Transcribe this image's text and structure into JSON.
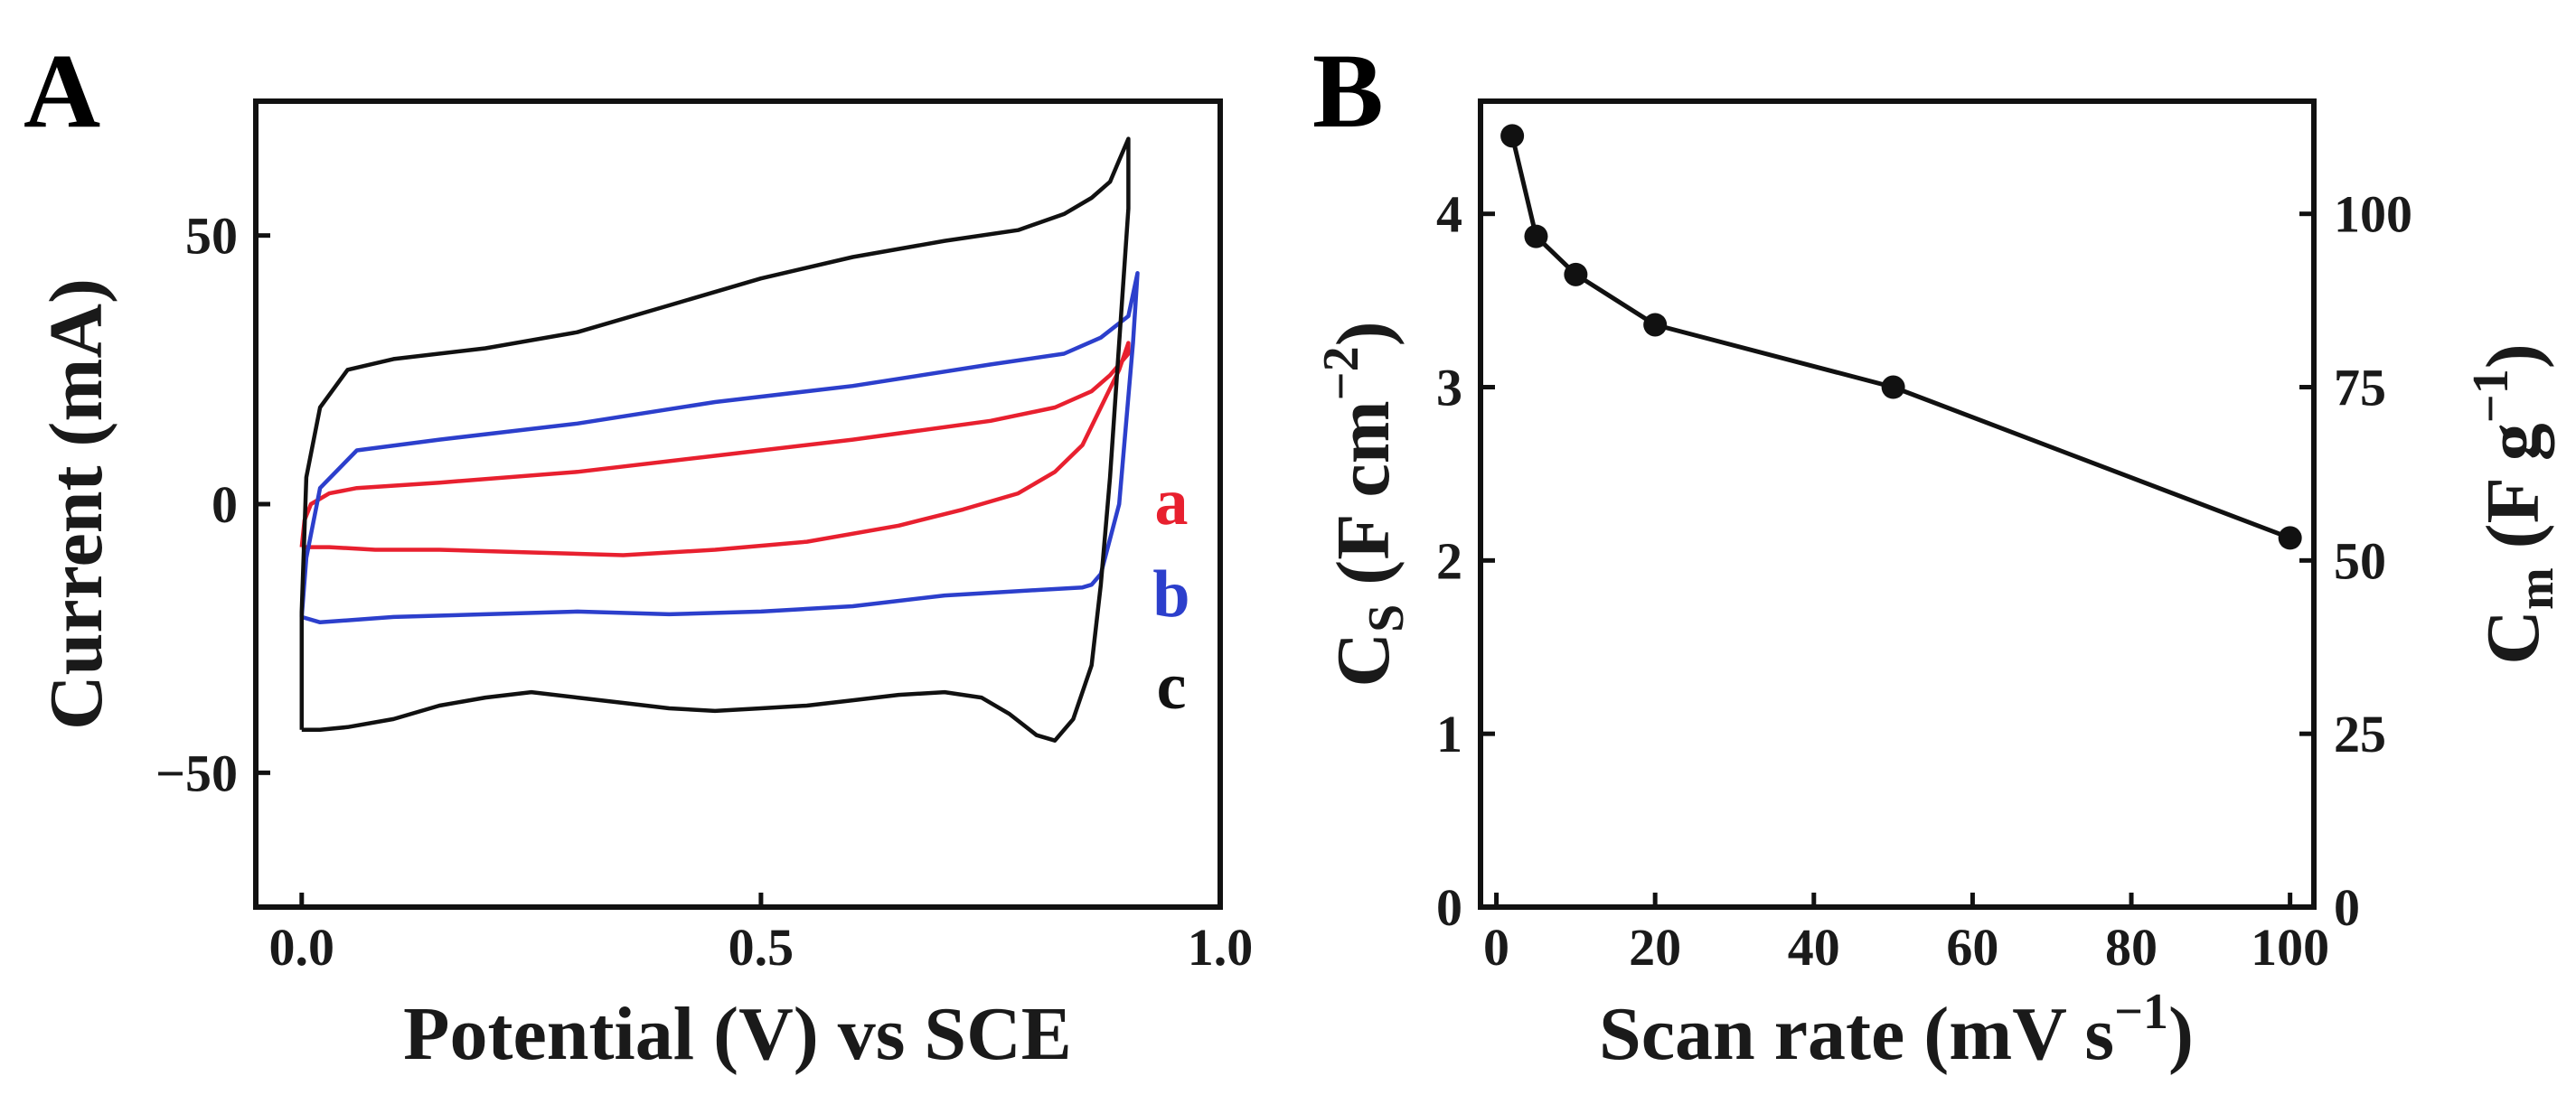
{
  "chart_data": [
    {
      "panel": "A",
      "type": "line",
      "title": "",
      "xlabel": "Potential (V) vs SCE",
      "ylabel": "Current (mA)",
      "xlim": [
        -0.05,
        1.0
      ],
      "ylim": [
        -75,
        75
      ],
      "xticks": [
        0.0,
        0.5,
        1.0
      ],
      "xtick_labels": [
        "0.0",
        "0.5",
        "1.0"
      ],
      "yticks": [
        -50,
        0,
        50
      ],
      "ytick_labels": [
        "−50",
        "0",
        "50"
      ],
      "grid": false,
      "legend_position": "right",
      "series": [
        {
          "name": "a",
          "color": "#e8202f",
          "x": [
            0.0,
            0.003,
            0.01,
            0.03,
            0.06,
            0.15,
            0.3,
            0.45,
            0.6,
            0.75,
            0.82,
            0.86,
            0.88,
            0.9,
            0.9,
            0.89,
            0.87,
            0.85,
            0.82,
            0.78,
            0.72,
            0.65,
            0.55,
            0.45,
            0.35,
            0.25,
            0.15,
            0.08,
            0.03,
            0.01,
            0.0
          ],
          "y": [
            -8,
            -3,
            0,
            2,
            3,
            4,
            6,
            9,
            12,
            15.5,
            18,
            21,
            24,
            28,
            30,
            25,
            18,
            11,
            6,
            2,
            -1,
            -4,
            -7,
            -8.5,
            -9.5,
            -9,
            -8.5,
            -8.5,
            -8,
            -8,
            -8
          ]
        },
        {
          "name": "b",
          "color": "#2c3fcc",
          "x": [
            0.0,
            0.005,
            0.02,
            0.06,
            0.15,
            0.3,
            0.45,
            0.6,
            0.75,
            0.83,
            0.87,
            0.9,
            0.91,
            0.905,
            0.89,
            0.87,
            0.86,
            0.85,
            0.8,
            0.7,
            0.6,
            0.5,
            0.4,
            0.3,
            0.2,
            0.1,
            0.02,
            0.0
          ],
          "y": [
            -21,
            -10,
            3,
            10,
            12,
            15,
            19,
            22,
            26,
            28,
            31,
            35,
            43,
            30,
            0,
            -13,
            -15,
            -15.5,
            -16,
            -17,
            -19,
            -20,
            -20.5,
            -20,
            -20.5,
            -21,
            -22,
            -21
          ]
        },
        {
          "name": "c",
          "color": "#111111",
          "x": [
            0.0,
            0.0,
            0.005,
            0.02,
            0.05,
            0.1,
            0.2,
            0.3,
            0.4,
            0.5,
            0.6,
            0.7,
            0.78,
            0.83,
            0.86,
            0.88,
            0.89,
            0.9,
            0.9,
            0.89,
            0.88,
            0.87,
            0.86,
            0.84,
            0.82,
            0.8,
            0.77,
            0.74,
            0.7,
            0.65,
            0.6,
            0.55,
            0.5,
            0.45,
            0.4,
            0.35,
            0.3,
            0.25,
            0.2,
            0.15,
            0.1,
            0.05,
            0.02,
            0.0
          ],
          "y": [
            -42,
            -20,
            5,
            18,
            25,
            27,
            29,
            32,
            37,
            42,
            46,
            49,
            51,
            54,
            57,
            60,
            64,
            68,
            55,
            30,
            5,
            -15,
            -30,
            -40,
            -44,
            -43,
            -39,
            -36,
            -35,
            -35.5,
            -36.5,
            -37.5,
            -38,
            -38.5,
            -38,
            -37,
            -36,
            -35,
            -36,
            -37.5,
            -40,
            -41.5,
            -42,
            -42
          ]
        }
      ]
    },
    {
      "panel": "B",
      "type": "line",
      "title": "",
      "xlabel": "Scan rate (mV s−1)",
      "ylabel": "CS (F cm−2)",
      "ylabel_right": "Cm (F g−1)",
      "xlim": [
        -2,
        103
      ],
      "ylim": [
        0,
        4.65
      ],
      "ylim_right": [
        0,
        116.25
      ],
      "xticks": [
        0,
        20,
        40,
        60,
        80,
        100
      ],
      "xtick_labels": [
        "0",
        "20",
        "40",
        "60",
        "80",
        "100"
      ],
      "yticks": [
        0,
        1,
        2,
        3,
        4
      ],
      "ytick_labels": [
        "0",
        "1",
        "2",
        "3",
        "4"
      ],
      "yticks_right": [
        0,
        25,
        50,
        75,
        100
      ],
      "ytick_labels_right": [
        "0",
        "25",
        "50",
        "75",
        "100"
      ],
      "grid": false,
      "series": [
        {
          "name": "CS",
          "color": "#111111",
          "x": [
            2,
            5,
            10,
            20,
            50,
            100
          ],
          "y": [
            4.45,
            3.87,
            3.65,
            3.36,
            3.0,
            2.13
          ]
        }
      ]
    }
  ],
  "figure": {
    "panel_a_label": "A",
    "panel_b_label": "B",
    "a_xlabel": "Potential (V) vs SCE",
    "a_ylabel": "Current (mA)",
    "b_xlabel_main": "Scan rate (mV s",
    "b_xlabel_sup": "−1",
    "b_xlabel_end": ")",
    "b_ylabel_main": "C",
    "b_ylabel_sub": "S",
    "b_ylabel_rest": " (F cm",
    "b_ylabel_sup": "−2",
    "b_ylabel_end": ")",
    "b_ylabel_right_main": "C",
    "b_ylabel_right_sub": "m",
    "b_ylabel_right_rest": " (F g",
    "b_ylabel_right_sup": "−1",
    "b_ylabel_right_end": ")"
  }
}
